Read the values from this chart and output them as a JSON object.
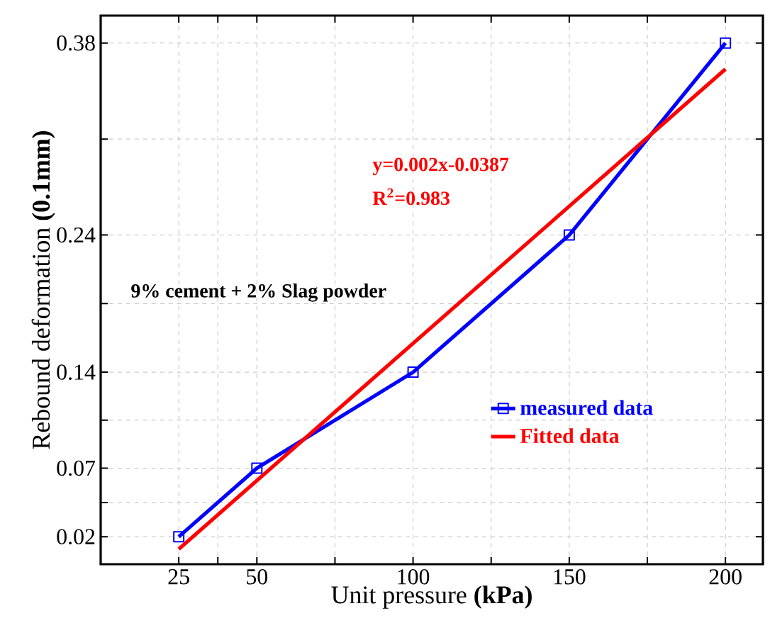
{
  "chart_data": {
    "type": "line",
    "xlabel": "Unit pressure **(kPa)**",
    "ylabel": "Rebound deformation **(0.1mm)**",
    "xlim": [
      0,
      212
    ],
    "ylim": [
      0,
      0.4
    ],
    "xticks": [
      25,
      {
        "value": 37.5,
        "label": null
      },
      50,
      {
        "value": 75,
        "label": null
      },
      100,
      {
        "value": 125,
        "label": null
      },
      150,
      {
        "value": 175,
        "label": null
      },
      200
    ],
    "yticks": [
      0.02,
      {
        "value": 0.045,
        "label": null
      },
      0.07,
      {
        "value": 0.105,
        "label": null
      },
      0.14,
      {
        "value": 0.19,
        "label": null
      },
      0.24,
      {
        "value": 0.31,
        "label": null
      },
      0.38
    ],
    "grid": true,
    "legend": "bottom right",
    "marker": "square",
    "series": [
      {
        "name": "measured data",
        "color": "#0000ff",
        "x": [
          25,
          50,
          100,
          150,
          200
        ],
        "values": [
          0.02,
          0.07,
          0.14,
          0.24,
          0.38
        ]
      },
      {
        "name": "Fitted data",
        "color": "#ff0000",
        "marker": "none",
        "x": [
          25,
          200
        ],
        "values": [
          0.011,
          0.361
        ]
      }
    ],
    "annotations": [
      "y=0.002x-0.0387",
      "R$^{2}$=0.983",
      "9% cement + 2% Slag powder"
    ]
  }
}
